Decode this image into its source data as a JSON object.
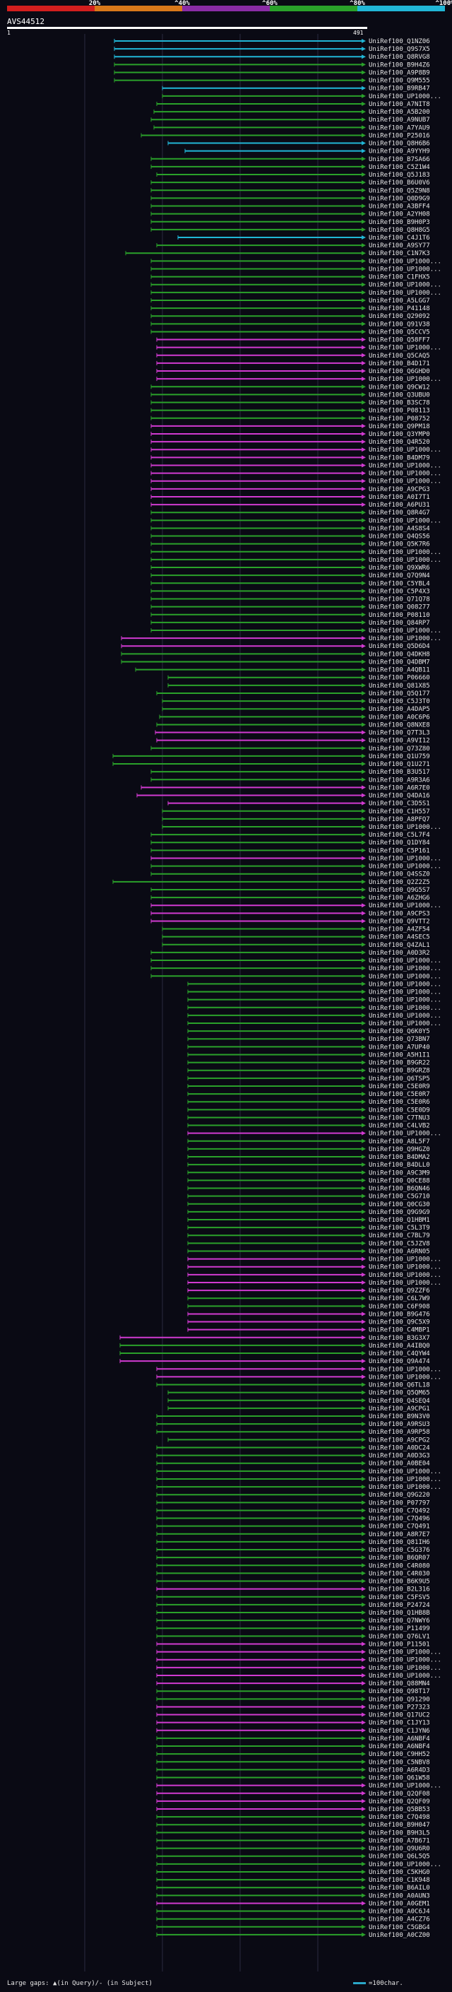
{
  "scale": {
    "labels": [
      "20%",
      "^40%",
      "^60%",
      "^80%",
      "^100%"
    ],
    "colors": [
      "#d21e1e",
      "#d9781a",
      "#8a2ca6",
      "#2aa12a",
      "#21b6d6"
    ]
  },
  "query": {
    "name": "AVS44512",
    "start": "1",
    "end": "491"
  },
  "hits": [
    {
      "label": "UniRef100_Q1NZ06",
      "color": "#21b6d6"
    },
    {
      "label": "UniRef100_Q9S7X5",
      "color": "#21b6d6"
    },
    {
      "label": "UniRef100_Q8RVG8",
      "color": "#21b6d6"
    },
    {
      "label": "UniRef100_B9H4Z6",
      "color": "#2aa12a"
    },
    {
      "label": "UniRef100_A9P8B9",
      "color": "#2aa12a"
    },
    {
      "label": "UniRef100_Q9M555",
      "color": "#2aa12a"
    },
    {
      "label": "UniRef100_B9RB47",
      "color": "#21b6d6"
    },
    {
      "label": "UniRef100_UP1000...",
      "color": "#2aa12a"
    },
    {
      "label": "UniRef100_A7NIT8",
      "color": "#2aa12a"
    },
    {
      "label": "UniRef100_A5B200",
      "color": "#2aa12a"
    },
    {
      "label": "UniRef100_A9NUB7",
      "color": "#2aa12a"
    },
    {
      "label": "UniRef100_A7YAU9",
      "color": "#2aa12a"
    },
    {
      "label": "UniRef100_P25016",
      "color": "#2aa12a"
    },
    {
      "label": "UniRef100_Q8H6B6",
      "color": "#21b6d6"
    },
    {
      "label": "UniRef100_A9YYH9",
      "color": "#21b6d6"
    },
    {
      "label": "UniRef100_B7SA66",
      "color": "#2aa12a"
    },
    {
      "label": "UniRef100_C5Z1W4",
      "color": "#2aa12a"
    },
    {
      "label": "UniRef100_Q5J183",
      "color": "#2aa12a"
    },
    {
      "label": "UniRef100_B6U0V6",
      "color": "#2aa12a"
    },
    {
      "label": "UniRef100_Q5Z9N8",
      "color": "#2aa12a"
    },
    {
      "label": "UniRef100_Q0D9G9",
      "color": "#2aa12a"
    },
    {
      "label": "UniRef100_A3BFF4",
      "color": "#2aa12a"
    },
    {
      "label": "UniRef100_A2YH08",
      "color": "#2aa12a"
    },
    {
      "label": "UniRef100_B9H0P3",
      "color": "#2aa12a"
    },
    {
      "label": "UniRef100_Q8H8G5",
      "color": "#2aa12a"
    },
    {
      "label": "UniRef100_C4J1T6",
      "color": "#21b6d6"
    },
    {
      "label": "UniRef100_A9SY77",
      "color": "#2aa12a"
    },
    {
      "label": "UniRef100_C1N7K3",
      "color": "#2aa12a"
    },
    {
      "label": "UniRef100_UP1000...",
      "color": "#2aa12a"
    },
    {
      "label": "UniRef100_UP1000...",
      "color": "#2aa12a"
    },
    {
      "label": "UniRef100_C1FHX5",
      "color": "#2aa12a"
    },
    {
      "label": "UniRef100_UP1000...",
      "color": "#2aa12a"
    },
    {
      "label": "UniRef100_UP1000...",
      "color": "#2aa12a"
    },
    {
      "label": "UniRef100_A5LGG7",
      "color": "#2aa12a"
    },
    {
      "label": "UniRef100_P41148",
      "color": "#2aa12a"
    },
    {
      "label": "UniRef100_Q29092",
      "color": "#2aa12a"
    },
    {
      "label": "UniRef100_Q91V38",
      "color": "#2aa12a"
    },
    {
      "label": "UniRef100_Q5CCV5",
      "color": "#2aa12a"
    },
    {
      "label": "UniRef100_Q58FF7",
      "color": "#d13ad1"
    },
    {
      "label": "UniRef100_UP1000...",
      "color": "#d13ad1"
    },
    {
      "label": "UniRef100_Q5CAQ5",
      "color": "#d13ad1"
    },
    {
      "label": "UniRef100_B4D171",
      "color": "#d13ad1"
    },
    {
      "label": "UniRef100_Q6GHD0",
      "color": "#d13ad1"
    },
    {
      "label": "UniRef100_UP1000...",
      "color": "#d13ad1"
    },
    {
      "label": "UniRef100_Q9CW12",
      "color": "#2aa12a"
    },
    {
      "label": "UniRef100_Q3UBU0",
      "color": "#2aa12a"
    },
    {
      "label": "UniRef100_B3SC78",
      "color": "#2aa12a"
    },
    {
      "label": "UniRef100_P08113",
      "color": "#2aa12a"
    },
    {
      "label": "UniRef100_P08752",
      "color": "#2aa12a"
    },
    {
      "label": "UniRef100_Q9PM18",
      "color": "#d13ad1"
    },
    {
      "label": "UniRef100_Q3YMP0",
      "color": "#d13ad1"
    },
    {
      "label": "UniRef100_Q4R520",
      "color": "#d13ad1"
    },
    {
      "label": "UniRef100_UP1000...",
      "color": "#d13ad1"
    },
    {
      "label": "UniRef100_B4DM79",
      "color": "#d13ad1"
    },
    {
      "label": "UniRef100_UP1000...",
      "color": "#d13ad1"
    },
    {
      "label": "UniRef100_UP1000...",
      "color": "#d13ad1"
    },
    {
      "label": "UniRef100_UP1000...",
      "color": "#d13ad1"
    },
    {
      "label": "UniRef100_A9CPG3",
      "color": "#d13ad1"
    },
    {
      "label": "UniRef100_A0I7T1",
      "color": "#d13ad1"
    },
    {
      "label": "UniRef100_A6PU31",
      "color": "#d13ad1"
    },
    {
      "label": "UniRef100_Q8R4G7",
      "color": "#2aa12a"
    },
    {
      "label": "UniRef100_UP1000...",
      "color": "#2aa12a"
    },
    {
      "label": "UniRef100_A4S8S4",
      "color": "#2aa12a"
    },
    {
      "label": "UniRef100_Q4QS56",
      "color": "#2aa12a"
    },
    {
      "label": "UniRef100_Q5K7R6",
      "color": "#2aa12a"
    },
    {
      "label": "UniRef100_UP1000...",
      "color": "#2aa12a"
    },
    {
      "label": "UniRef100_UP1000...",
      "color": "#2aa12a"
    },
    {
      "label": "UniRef100_Q9XWR6",
      "color": "#2aa12a"
    },
    {
      "label": "UniRef100_Q7Q9N4",
      "color": "#2aa12a"
    },
    {
      "label": "UniRef100_C5YBL4",
      "color": "#2aa12a"
    },
    {
      "label": "UniRef100_C5P4X3",
      "color": "#2aa12a"
    },
    {
      "label": "UniRef100_Q71Q78",
      "color": "#2aa12a"
    },
    {
      "label": "UniRef100_Q08277",
      "color": "#2aa12a"
    },
    {
      "label": "UniRef100_P08110",
      "color": "#2aa12a"
    },
    {
      "label": "UniRef100_Q84RP7",
      "color": "#2aa12a"
    },
    {
      "label": "UniRef100_UP1000...",
      "color": "#2aa12a"
    },
    {
      "label": "UniRef100_UP1000...",
      "color": "#d13ad1"
    },
    {
      "label": "UniRef100_Q5D6D4",
      "color": "#d13ad1"
    },
    {
      "label": "UniRef100_Q4DKH8",
      "color": "#2aa12a"
    },
    {
      "label": "UniRef100_Q4DBM7",
      "color": "#2aa12a"
    },
    {
      "label": "UniRef100_A4QB11",
      "color": "#2aa12a"
    },
    {
      "label": "UniRef100_P06660",
      "color": "#2aa12a"
    },
    {
      "label": "UniRef100_Q81X85",
      "color": "#2aa12a"
    },
    {
      "label": "UniRef100_Q5Q177",
      "color": "#2aa12a"
    },
    {
      "label": "UniRef100_C5J3T0",
      "color": "#2aa12a"
    },
    {
      "label": "UniRef100_A4DAP5",
      "color": "#2aa12a"
    },
    {
      "label": "UniRef100_A0C6P6",
      "color": "#2aa12a"
    },
    {
      "label": "UniRef100_Q8NXE8",
      "color": "#2aa12a"
    },
    {
      "label": "UniRef100_Q7T3L3",
      "color": "#d13ad1"
    },
    {
      "label": "UniRef100_A9VI12",
      "color": "#d13ad1"
    },
    {
      "label": "UniRef100_Q73Z80",
      "color": "#2aa12a"
    },
    {
      "label": "UniRef100_Q1U759",
      "color": "#2aa12a"
    },
    {
      "label": "UniRef100_Q1U271",
      "color": "#2aa12a"
    },
    {
      "label": "UniRef100_B3U517",
      "color": "#2aa12a"
    },
    {
      "label": "UniRef100_A9R3A6",
      "color": "#2aa12a"
    },
    {
      "label": "UniRef100_A6R7E0",
      "color": "#d13ad1"
    },
    {
      "label": "UniRef100_Q4DA16",
      "color": "#d13ad1"
    },
    {
      "label": "UniRef100_C3D5S1",
      "color": "#d13ad1"
    },
    {
      "label": "UniRef100_C1H557",
      "color": "#2aa12a"
    },
    {
      "label": "UniRef100_A8PFQ7",
      "color": "#2aa12a"
    },
    {
      "label": "UniRef100_UP1000...",
      "color": "#2aa12a"
    },
    {
      "label": "UniRef100_C5L7F4",
      "color": "#2aa12a"
    },
    {
      "label": "UniRef100_Q1DY84",
      "color": "#2aa12a"
    },
    {
      "label": "UniRef100_C5P161",
      "color": "#2aa12a"
    },
    {
      "label": "UniRef100_UP1000...",
      "color": "#d13ad1"
    },
    {
      "label": "UniRef100_UP1000...",
      "color": "#2aa12a"
    },
    {
      "label": "UniRef100_Q4SSZ0",
      "color": "#2aa12a"
    },
    {
      "label": "UniRef100_Q2Z2Z5",
      "color": "#2aa12a"
    },
    {
      "label": "UniRef100_Q9G5S7",
      "color": "#2aa12a"
    },
    {
      "label": "UniRef100_A6ZHG6",
      "color": "#2aa12a"
    },
    {
      "label": "UniRef100_UP1000...",
      "color": "#d13ad1"
    },
    {
      "label": "UniRef100_A9CPS3",
      "color": "#d13ad1"
    },
    {
      "label": "UniRef100_Q9VTT2",
      "color": "#d13ad1"
    },
    {
      "label": "UniRef100_A4ZF54",
      "color": "#2aa12a"
    },
    {
      "label": "UniRef100_A4SEC5",
      "color": "#2aa12a"
    },
    {
      "label": "UniRef100_Q4ZAL1",
      "color": "#2aa12a"
    },
    {
      "label": "UniRef100_A0D3R2",
      "color": "#2aa12a"
    },
    {
      "label": "UniRef100_UP1000...",
      "color": "#2aa12a"
    },
    {
      "label": "UniRef100_UP1000...",
      "color": "#2aa12a"
    },
    {
      "label": "UniRef100_UP1000...",
      "color": "#2aa12a"
    },
    {
      "label": "UniRef100_UP1000...",
      "color": "#2aa12a"
    },
    {
      "label": "UniRef100_UP1000...",
      "color": "#2aa12a"
    },
    {
      "label": "UniRef100_UP1000...",
      "color": "#2aa12a"
    },
    {
      "label": "UniRef100_UP1000...",
      "color": "#2aa12a"
    },
    {
      "label": "UniRef100_UP1000...",
      "color": "#2aa12a"
    },
    {
      "label": "UniRef100_UP1000...",
      "color": "#2aa12a"
    },
    {
      "label": "UniRef100_Q6K0Y5",
      "color": "#2aa12a"
    },
    {
      "label": "UniRef100_Q73BN7",
      "color": "#2aa12a"
    },
    {
      "label": "UniRef100_A7UP40",
      "color": "#2aa12a"
    },
    {
      "label": "UniRef100_A5H1I1",
      "color": "#2aa12a"
    },
    {
      "label": "UniRef100_B9GR22",
      "color": "#2aa12a"
    },
    {
      "label": "UniRef100_B9GRZ8",
      "color": "#2aa12a"
    },
    {
      "label": "UniRef100_Q6TSP5",
      "color": "#2aa12a"
    },
    {
      "label": "UniRef100_C5E0R9",
      "color": "#2aa12a"
    },
    {
      "label": "UniRef100_C5E0R7",
      "color": "#2aa12a"
    },
    {
      "label": "UniRef100_C5E0R6",
      "color": "#2aa12a"
    },
    {
      "label": "UniRef100_C5E0D9",
      "color": "#2aa12a"
    },
    {
      "label": "UniRef100_C7TNU3",
      "color": "#2aa12a"
    },
    {
      "label": "UniRef100_C4LVB2",
      "color": "#2aa12a"
    },
    {
      "label": "UniRef100_UP1000...",
      "color": "#d13ad1"
    },
    {
      "label": "UniRef100_A8L5F7",
      "color": "#2aa12a"
    },
    {
      "label": "UniRef100_Q9HGZ0",
      "color": "#2aa12a"
    },
    {
      "label": "UniRef100_B4DMA2",
      "color": "#2aa12a"
    },
    {
      "label": "UniRef100_B4DLL0",
      "color": "#2aa12a"
    },
    {
      "label": "UniRef100_A9C3M9",
      "color": "#2aa12a"
    },
    {
      "label": "UniRef100_Q0CE88",
      "color": "#2aa12a"
    },
    {
      "label": "UniRef100_B6QN46",
      "color": "#2aa12a"
    },
    {
      "label": "UniRef100_C5G710",
      "color": "#2aa12a"
    },
    {
      "label": "UniRef100_Q0CG30",
      "color": "#2aa12a"
    },
    {
      "label": "UniRef100_Q9G9G9",
      "color": "#2aa12a"
    },
    {
      "label": "UniRef100_Q1HBM1",
      "color": "#2aa12a"
    },
    {
      "label": "UniRef100_C5L3T9",
      "color": "#2aa12a"
    },
    {
      "label": "UniRef100_C7BL79",
      "color": "#2aa12a"
    },
    {
      "label": "UniRef100_C5JZV8",
      "color": "#2aa12a"
    },
    {
      "label": "UniRef100_A6RN05",
      "color": "#2aa12a"
    },
    {
      "label": "UniRef100_UP1000...",
      "color": "#d13ad1"
    },
    {
      "label": "UniRef100_UP1000...",
      "color": "#d13ad1"
    },
    {
      "label": "UniRef100_UP1000...",
      "color": "#d13ad1"
    },
    {
      "label": "UniRef100_UP1000...",
      "color": "#d13ad1"
    },
    {
      "label": "UniRef100_Q9ZZF6",
      "color": "#d13ad1"
    },
    {
      "label": "UniRef100_C6L7W9",
      "color": "#2aa12a"
    },
    {
      "label": "UniRef100_C6F908",
      "color": "#2aa12a"
    },
    {
      "label": "UniRef100_B9G476",
      "color": "#d13ad1"
    },
    {
      "label": "UniRef100_Q9C5X9",
      "color": "#d13ad1"
    },
    {
      "label": "UniRef100_C4MBP1",
      "color": "#d13ad1"
    },
    {
      "label": "UniRef100_B3G3X7",
      "color": "#d13ad1"
    },
    {
      "label": "UniRef100_A4IBQ0",
      "color": "#2aa12a"
    },
    {
      "label": "UniRef100_C4QYW4",
      "color": "#2aa12a"
    },
    {
      "label": "UniRef100_Q9A474",
      "color": "#d13ad1"
    },
    {
      "label": "UniRef100_UP1000...",
      "color": "#d13ad1"
    },
    {
      "label": "UniRef100_UP1000...",
      "color": "#d13ad1"
    },
    {
      "label": "UniRef100_Q6TL18",
      "color": "#2aa12a"
    },
    {
      "label": "UniRef100_Q5QM65",
      "color": "#2aa12a"
    },
    {
      "label": "UniRef100_Q4SEQ4",
      "color": "#2aa12a"
    },
    {
      "label": "UniRef100_A9CPG1",
      "color": "#2aa12a"
    },
    {
      "label": "UniRef100_B9N3V0",
      "color": "#2aa12a"
    },
    {
      "label": "UniRef100_A9RSU3",
      "color": "#2aa12a"
    },
    {
      "label": "UniRef100_A9RP58",
      "color": "#2aa12a"
    },
    {
      "label": "UniRef100_A9CPG2",
      "color": "#2aa12a"
    },
    {
      "label": "UniRef100_A0DC24",
      "color": "#2aa12a"
    },
    {
      "label": "UniRef100_A0D3G3",
      "color": "#2aa12a"
    },
    {
      "label": "UniRef100_A0BE04",
      "color": "#2aa12a"
    },
    {
      "label": "UniRef100_UP1000...",
      "color": "#2aa12a"
    },
    {
      "label": "UniRef100_UP1000...",
      "color": "#2aa12a"
    },
    {
      "label": "UniRef100_UP1000...",
      "color": "#2aa12a"
    },
    {
      "label": "UniRef100_Q9G220",
      "color": "#2aa12a"
    },
    {
      "label": "UniRef100_P07797",
      "color": "#2aa12a"
    },
    {
      "label": "UniRef100_C7Q492",
      "color": "#2aa12a"
    },
    {
      "label": "UniRef100_C7Q496",
      "color": "#2aa12a"
    },
    {
      "label": "UniRef100_C7Q491",
      "color": "#2aa12a"
    },
    {
      "label": "UniRef100_A8R7E7",
      "color": "#2aa12a"
    },
    {
      "label": "UniRef100_Q81IH6",
      "color": "#2aa12a"
    },
    {
      "label": "UniRef100_C5G376",
      "color": "#2aa12a"
    },
    {
      "label": "UniRef100_B6QR07",
      "color": "#2aa12a"
    },
    {
      "label": "UniRef100_C4R080",
      "color": "#2aa12a"
    },
    {
      "label": "UniRef100_C4R030",
      "color": "#2aa12a"
    },
    {
      "label": "UniRef100_B6K9U5",
      "color": "#2aa12a"
    },
    {
      "label": "UniRef100_B2L316",
      "color": "#d13ad1"
    },
    {
      "label": "UniRef100_C5FSV5",
      "color": "#2aa12a"
    },
    {
      "label": "UniRef100_P24724",
      "color": "#2aa12a"
    },
    {
      "label": "UniRef100_Q1HB8B",
      "color": "#2aa12a"
    },
    {
      "label": "UniRef100_Q7NWY6",
      "color": "#2aa12a"
    },
    {
      "label": "UniRef100_P11499",
      "color": "#2aa12a"
    },
    {
      "label": "UniRef100_Q76LV1",
      "color": "#2aa12a"
    },
    {
      "label": "UniRef100_P11501",
      "color": "#d13ad1"
    },
    {
      "label": "UniRef100_UP1000...",
      "color": "#d13ad1"
    },
    {
      "label": "UniRef100_UP1000...",
      "color": "#d13ad1"
    },
    {
      "label": "UniRef100_UP1000...",
      "color": "#d13ad1"
    },
    {
      "label": "UniRef100_UP1000...",
      "color": "#d13ad1"
    },
    {
      "label": "UniRef100_Q88MN4",
      "color": "#d13ad1"
    },
    {
      "label": "UniRef100_Q98T17",
      "color": "#2aa12a"
    },
    {
      "label": "UniRef100_Q91290",
      "color": "#2aa12a"
    },
    {
      "label": "UniRef100_P27323",
      "color": "#d13ad1"
    },
    {
      "label": "UniRef100_Q17UC2",
      "color": "#d13ad1"
    },
    {
      "label": "UniRef100_C1JY13",
      "color": "#d13ad1"
    },
    {
      "label": "UniRef100_C1JYN6",
      "color": "#d13ad1"
    },
    {
      "label": "UniRef100_A6NBF4",
      "color": "#2aa12a"
    },
    {
      "label": "UniRef100_A6NBF4",
      "color": "#2aa12a"
    },
    {
      "label": "UniRef100_C9HH52",
      "color": "#2aa12a"
    },
    {
      "label": "UniRef100_C5NBV8",
      "color": "#2aa12a"
    },
    {
      "label": "UniRef100_A6R4D3",
      "color": "#2aa12a"
    },
    {
      "label": "UniRef100_Q61W58",
      "color": "#2aa12a"
    },
    {
      "label": "UniRef100_UP1000...",
      "color": "#d13ad1"
    },
    {
      "label": "UniRef100_Q2QF08",
      "color": "#d13ad1"
    },
    {
      "label": "UniRef100_Q2QF09",
      "color": "#d13ad1"
    },
    {
      "label": "UniRef100_Q5BB53",
      "color": "#d13ad1"
    },
    {
      "label": "UniRef100_C7Q498",
      "color": "#2aa12a"
    },
    {
      "label": "UniRef100_B9H047",
      "color": "#2aa12a"
    },
    {
      "label": "UniRef100_B9H3L5",
      "color": "#2aa12a"
    },
    {
      "label": "UniRef100_A7B671",
      "color": "#2aa12a"
    },
    {
      "label": "UniRef100_Q9U6R0",
      "color": "#2aa12a"
    },
    {
      "label": "UniRef100_Q6L5Q5",
      "color": "#2aa12a"
    },
    {
      "label": "UniRef100_UP1000...",
      "color": "#2aa12a"
    },
    {
      "label": "UniRef100_C5KHG0",
      "color": "#2aa12a"
    },
    {
      "label": "UniRef100_C1K948",
      "color": "#2aa12a"
    },
    {
      "label": "UniRef100_B6AIL0",
      "color": "#2aa12a"
    },
    {
      "label": "UniRef100_A0AUN3",
      "color": "#2aa12a"
    },
    {
      "label": "UniRef100_A0GEM1",
      "color": "#d13ad1"
    },
    {
      "label": "UniRef100_A0C6J4",
      "color": "#2aa12a"
    },
    {
      "label": "UniRef100_A4CZ76",
      "color": "#2aa12a"
    },
    {
      "label": "UniRef100_C5GBG4",
      "color": "#2aa12a"
    },
    {
      "label": "UniRef100_A0CZ00",
      "color": "#2aa12a"
    }
  ],
  "legend": {
    "left": "Large gaps: ▲(in Query)/- (in Subject)",
    "right": "=100char."
  }
}
